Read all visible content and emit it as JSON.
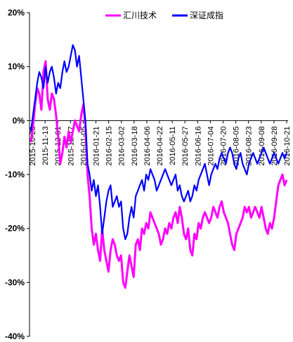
{
  "chart_data": {
    "type": "line",
    "title": "",
    "xlabel": "",
    "ylabel": "",
    "ylim": [
      -40,
      20
    ],
    "yticks": [
      "20%",
      "10%",
      "0%",
      "-10%",
      "-20%",
      "-30%",
      "-40%"
    ],
    "ytick_values": [
      20,
      10,
      0,
      -10,
      -20,
      -30,
      -40
    ],
    "x_tick_labels": [
      "2015-10-28",
      "2015-11-13",
      "2015-12-01",
      "2015-12-17",
      "2016-01-05",
      "2016-01-21",
      "2016-02-15",
      "2016-03-02",
      "2016-03-18",
      "2016-04-06",
      "2016-04-22",
      "2016-05-11",
      "2016-05-27",
      "2016-06-16",
      "2016-07-04",
      "2016-07-20",
      "2016-08-05",
      "2016-08-23",
      "2016-09-08",
      "2016-09-28",
      "2016-10-21"
    ],
    "legend": {
      "placement": "top",
      "items": [
        "汇川技术",
        "深证成指"
      ]
    },
    "grid": false,
    "series": [
      {
        "name": "汇川技术",
        "color": "#ff00ff",
        "values": [
          [
            0,
            -4
          ],
          [
            1,
            -1
          ],
          [
            2,
            3
          ],
          [
            3,
            6
          ],
          [
            4,
            5
          ],
          [
            5,
            2
          ],
          [
            6,
            9
          ],
          [
            7,
            11
          ],
          [
            8,
            4
          ],
          [
            9,
            2
          ],
          [
            10,
            5
          ],
          [
            11,
            4
          ],
          [
            12,
            1
          ],
          [
            13,
            -3
          ],
          [
            14,
            -8
          ],
          [
            15,
            -6
          ],
          [
            16,
            -3
          ],
          [
            17,
            -5
          ],
          [
            18,
            -2
          ],
          [
            19,
            -4
          ],
          [
            20,
            -2
          ],
          [
            21,
            0
          ],
          [
            22,
            -1
          ],
          [
            23,
            -2
          ],
          [
            24,
            1
          ],
          [
            25,
            3
          ],
          [
            26,
            -1
          ],
          [
            27,
            -10
          ],
          [
            28,
            -14
          ],
          [
            29,
            -20
          ],
          [
            30,
            -23
          ],
          [
            31,
            -21
          ],
          [
            32,
            -24
          ],
          [
            33,
            -26
          ],
          [
            34,
            -20
          ],
          [
            35,
            -24
          ],
          [
            36,
            -26
          ],
          [
            37,
            -28
          ],
          [
            38,
            -24
          ],
          [
            39,
            -22
          ],
          [
            40,
            -23
          ],
          [
            41,
            -25
          ],
          [
            42,
            -26
          ],
          [
            43,
            -25
          ],
          [
            44,
            -30
          ],
          [
            45,
            -31
          ],
          [
            46,
            -28
          ],
          [
            47,
            -25
          ],
          [
            48,
            -27
          ],
          [
            49,
            -29
          ],
          [
            50,
            -23
          ],
          [
            51,
            -22
          ],
          [
            52,
            -24
          ],
          [
            53,
            -20
          ],
          [
            54,
            -21
          ],
          [
            55,
            -19
          ],
          [
            56,
            -20
          ],
          [
            57,
            -17
          ],
          [
            58,
            -18
          ],
          [
            59,
            -19
          ],
          [
            60,
            -20
          ],
          [
            61,
            -21
          ],
          [
            62,
            -23
          ],
          [
            63,
            -22
          ],
          [
            64,
            -20
          ],
          [
            65,
            -21
          ],
          [
            66,
            -19
          ],
          [
            67,
            -20
          ],
          [
            68,
            -18
          ],
          [
            69,
            -17
          ],
          [
            70,
            -19
          ],
          [
            71,
            -16
          ],
          [
            72,
            -18
          ],
          [
            73,
            -21
          ],
          [
            74,
            -22
          ],
          [
            75,
            -20
          ],
          [
            76,
            -24
          ],
          [
            77,
            -25
          ],
          [
            78,
            -21
          ],
          [
            79,
            -22
          ],
          [
            80,
            -19
          ],
          [
            81,
            -20
          ],
          [
            82,
            -18
          ],
          [
            83,
            -17
          ],
          [
            84,
            -18
          ],
          [
            85,
            -19
          ],
          [
            86,
            -18
          ],
          [
            87,
            -16
          ],
          [
            88,
            -17
          ],
          [
            89,
            -18
          ],
          [
            90,
            -16
          ],
          [
            91,
            -15
          ],
          [
            92,
            -17
          ],
          [
            93,
            -18
          ],
          [
            94,
            -19
          ],
          [
            95,
            -21
          ],
          [
            96,
            -23
          ],
          [
            97,
            -24
          ],
          [
            98,
            -21
          ],
          [
            99,
            -20
          ],
          [
            100,
            -19
          ],
          [
            101,
            -18
          ],
          [
            102,
            -16
          ],
          [
            103,
            -17
          ],
          [
            104,
            -16
          ],
          [
            105,
            -18
          ],
          [
            106,
            -17
          ],
          [
            107,
            -16
          ],
          [
            108,
            -17
          ],
          [
            109,
            -18
          ],
          [
            110,
            -16
          ],
          [
            111,
            -18
          ],
          [
            112,
            -20
          ],
          [
            113,
            -21
          ],
          [
            114,
            -19
          ],
          [
            115,
            -20
          ],
          [
            116,
            -18
          ],
          [
            117,
            -15
          ],
          [
            118,
            -12
          ],
          [
            119,
            -11
          ],
          [
            120,
            -10
          ],
          [
            121,
            -12
          ],
          [
            122,
            -11
          ]
        ]
      },
      {
        "name": "深证成指",
        "color": "#0000ff",
        "values": [
          [
            0,
            -2
          ],
          [
            1,
            1
          ],
          [
            2,
            4
          ],
          [
            3,
            7
          ],
          [
            4,
            9
          ],
          [
            5,
            8
          ],
          [
            6,
            6
          ],
          [
            7,
            10
          ],
          [
            8,
            7
          ],
          [
            9,
            9
          ],
          [
            10,
            10
          ],
          [
            11,
            8
          ],
          [
            12,
            5
          ],
          [
            13,
            7
          ],
          [
            14,
            6
          ],
          [
            15,
            9
          ],
          [
            16,
            11
          ],
          [
            17,
            9
          ],
          [
            18,
            10
          ],
          [
            19,
            12
          ],
          [
            20,
            14
          ],
          [
            21,
            13
          ],
          [
            22,
            10
          ],
          [
            23,
            12
          ],
          [
            24,
            8
          ],
          [
            25,
            4
          ],
          [
            26,
            0
          ],
          [
            27,
            -8
          ],
          [
            28,
            -10
          ],
          [
            29,
            -13
          ],
          [
            30,
            -11
          ],
          [
            31,
            -14
          ],
          [
            32,
            -12
          ],
          [
            33,
            -16
          ],
          [
            34,
            -21
          ],
          [
            35,
            -18
          ],
          [
            36,
            -15
          ],
          [
            37,
            -13
          ],
          [
            38,
            -12
          ],
          [
            39,
            -16
          ],
          [
            40,
            -15
          ],
          [
            41,
            -14
          ],
          [
            42,
            -16
          ],
          [
            43,
            -15
          ],
          [
            44,
            -20
          ],
          [
            45,
            -22
          ],
          [
            46,
            -21
          ],
          [
            47,
            -18
          ],
          [
            48,
            -16
          ],
          [
            49,
            -18
          ],
          [
            50,
            -14
          ],
          [
            51,
            -13
          ],
          [
            52,
            -12
          ],
          [
            53,
            -11
          ],
          [
            54,
            -13
          ],
          [
            55,
            -10
          ],
          [
            56,
            -11
          ],
          [
            57,
            -9
          ],
          [
            58,
            -10
          ],
          [
            59,
            -11
          ],
          [
            60,
            -13
          ],
          [
            61,
            -12
          ],
          [
            62,
            -11
          ],
          [
            63,
            -10
          ],
          [
            64,
            -9
          ],
          [
            65,
            -10
          ],
          [
            66,
            -11
          ],
          [
            67,
            -12
          ],
          [
            68,
            -11
          ],
          [
            69,
            -10
          ],
          [
            70,
            -13
          ],
          [
            71,
            -12
          ],
          [
            72,
            -14
          ],
          [
            73,
            -15
          ],
          [
            74,
            -14
          ],
          [
            75,
            -13
          ],
          [
            76,
            -15
          ],
          [
            77,
            -14
          ],
          [
            78,
            -12
          ],
          [
            79,
            -13
          ],
          [
            80,
            -11
          ],
          [
            81,
            -10
          ],
          [
            82,
            -9
          ],
          [
            83,
            -8
          ],
          [
            84,
            -10
          ],
          [
            85,
            -12
          ],
          [
            86,
            -10
          ],
          [
            87,
            -9
          ],
          [
            88,
            -8
          ],
          [
            89,
            -9
          ],
          [
            90,
            -7
          ],
          [
            91,
            -6
          ],
          [
            92,
            -7
          ],
          [
            93,
            -8
          ],
          [
            94,
            -6
          ],
          [
            95,
            -5
          ],
          [
            96,
            -6
          ],
          [
            97,
            -8
          ],
          [
            98,
            -9
          ],
          [
            99,
            -7
          ],
          [
            100,
            -6
          ],
          [
            101,
            -8
          ],
          [
            102,
            -9
          ],
          [
            103,
            -10
          ],
          [
            104,
            -8
          ],
          [
            105,
            -7
          ],
          [
            106,
            -6
          ],
          [
            107,
            -7
          ],
          [
            108,
            -8
          ],
          [
            109,
            -7
          ],
          [
            110,
            -6
          ],
          [
            111,
            -5
          ],
          [
            112,
            -6
          ],
          [
            113,
            -7
          ],
          [
            114,
            -8
          ],
          [
            115,
            -7
          ],
          [
            116,
            -6
          ],
          [
            117,
            -7
          ],
          [
            118,
            -8
          ],
          [
            119,
            -7
          ],
          [
            120,
            -6
          ],
          [
            121,
            -7
          ],
          [
            122,
            -6
          ]
        ]
      }
    ]
  }
}
